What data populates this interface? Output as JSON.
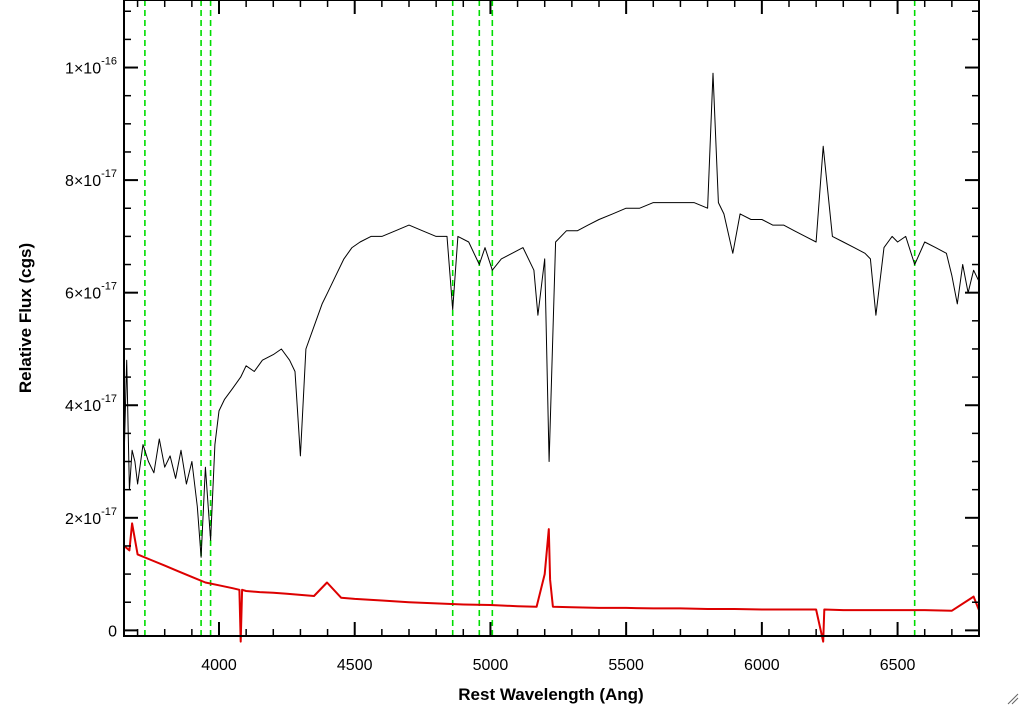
{
  "chart_data": {
    "type": "line",
    "xlabel": "Rest Wavelength (Ang)",
    "ylabel": "Relative Flux (cgs)",
    "xlim": [
      3650,
      6800
    ],
    "ylim": [
      -1e-18,
      1.12e-16
    ],
    "x_ticks": [
      {
        "value": 4000,
        "label": "4000"
      },
      {
        "value": 4500,
        "label": "4500"
      },
      {
        "value": 5000,
        "label": "5000"
      },
      {
        "value": 5500,
        "label": "5500"
      },
      {
        "value": 6000,
        "label": "6000"
      },
      {
        "value": 6500,
        "label": "6500"
      }
    ],
    "y_ticks": [
      {
        "value": 0,
        "mant": "0",
        "exp": ""
      },
      {
        "value": 2e-17,
        "mant": "2×10",
        "exp": "-17"
      },
      {
        "value": 4e-17,
        "mant": "4×10",
        "exp": "-17"
      },
      {
        "value": 6e-17,
        "mant": "6×10",
        "exp": "-17"
      },
      {
        "value": 8e-17,
        "mant": "8×10",
        "exp": "-17"
      },
      {
        "value": 1e-16,
        "mant": "1×10",
        "exp": "-16"
      }
    ],
    "grid": false,
    "legend": "none",
    "vlines": {
      "color": "#00dd00",
      "style": "dashed",
      "x": [
        3727,
        3934,
        3969,
        4861,
        4959,
        5007,
        6563
      ]
    },
    "series": [
      {
        "color": "#000000",
        "x": [
          3650,
          3660,
          3670,
          3680,
          3690,
          3700,
          3720,
          3740,
          3760,
          3780,
          3800,
          3820,
          3840,
          3860,
          3880,
          3900,
          3920,
          3934,
          3950,
          3969,
          3985,
          4000,
          4020,
          4050,
          4080,
          4100,
          4130,
          4160,
          4200,
          4230,
          4260,
          4280,
          4300,
          4320,
          4350,
          4380,
          4400,
          4430,
          4460,
          4490,
          4520,
          4560,
          4600,
          4650,
          4700,
          4750,
          4800,
          4840,
          4861,
          4880,
          4920,
          4959,
          4980,
          5007,
          5040,
          5080,
          5120,
          5160,
          5175,
          5200,
          5216,
          5240,
          5280,
          5320,
          5360,
          5400,
          5450,
          5500,
          5550,
          5600,
          5650,
          5700,
          5750,
          5800,
          5820,
          5840,
          5860,
          5893,
          5920,
          5960,
          6000,
          6040,
          6080,
          6120,
          6160,
          6200,
          6226,
          6260,
          6300,
          6340,
          6380,
          6400,
          6420,
          6450,
          6480,
          6500,
          6530,
          6563,
          6600,
          6640,
          6680,
          6700,
          6720,
          6740,
          6760,
          6780,
          6800
        ],
        "y": [
          3e-17,
          4.8e-17,
          2.5e-17,
          3.2e-17,
          3e-17,
          2.6e-17,
          3.3e-17,
          3e-17,
          2.8e-17,
          3.4e-17,
          2.9e-17,
          3.1e-17,
          2.7e-17,
          3.2e-17,
          2.6e-17,
          3e-17,
          2.2e-17,
          1.3e-17,
          2.9e-17,
          1.6e-17,
          3.3e-17,
          3.9e-17,
          4.1e-17,
          4.3e-17,
          4.5e-17,
          4.7e-17,
          4.6e-17,
          4.8e-17,
          4.9e-17,
          5e-17,
          4.8e-17,
          4.6e-17,
          3.1e-17,
          5e-17,
          5.4e-17,
          5.8e-17,
          6e-17,
          6.3e-17,
          6.6e-17,
          6.8e-17,
          6.9e-17,
          7e-17,
          7e-17,
          7.1e-17,
          7.2e-17,
          7.1e-17,
          7e-17,
          7e-17,
          5.7e-17,
          7e-17,
          6.9e-17,
          6.5e-17,
          6.8e-17,
          6.4e-17,
          6.6e-17,
          6.7e-17,
          6.8e-17,
          6.4e-17,
          5.6e-17,
          6.6e-17,
          3e-17,
          6.9e-17,
          7.1e-17,
          7.1e-17,
          7.2e-17,
          7.3e-17,
          7.4e-17,
          7.5e-17,
          7.5e-17,
          7.6e-17,
          7.6e-17,
          7.6e-17,
          7.6e-17,
          7.5e-17,
          9.9e-17,
          7.6e-17,
          7.4e-17,
          6.7e-17,
          7.4e-17,
          7.3e-17,
          7.3e-17,
          7.2e-17,
          7.2e-17,
          7.1e-17,
          7e-17,
          6.9e-17,
          8.6e-17,
          7e-17,
          6.9e-17,
          6.8e-17,
          6.7e-17,
          6.6e-17,
          5.6e-17,
          6.8e-17,
          7e-17,
          6.9e-17,
          7e-17,
          6.5e-17,
          6.9e-17,
          6.8e-17,
          6.7e-17,
          6.3e-17,
          5.8e-17,
          6.5e-17,
          6e-17,
          6.4e-17,
          6.2e-17
        ]
      },
      {
        "color": "#dd0000",
        "x": [
          3650,
          3670,
          3680,
          3700,
          3750,
          3800,
          3850,
          3900,
          3950,
          4000,
          4050,
          4075,
          4080,
          4085,
          4100,
          4150,
          4200,
          4250,
          4300,
          4350,
          4398,
          4450,
          4500,
          4600,
          4700,
          4800,
          4900,
          5000,
          5050,
          5100,
          5170,
          5200,
          5215,
          5220,
          5230,
          5300,
          5400,
          5500,
          5600,
          5700,
          5800,
          5900,
          6000,
          6100,
          6200,
          6226,
          6230,
          6300,
          6400,
          6500,
          6600,
          6700,
          6780,
          6800
        ],
        "y": [
          1.5e-17,
          1.42e-17,
          1.9e-17,
          1.35e-17,
          1.25e-17,
          1.15e-17,
          1.05e-17,
          9.5e-18,
          8.5e-18,
          8e-18,
          7.5e-18,
          7.2e-18,
          -2e-18,
          7.2e-18,
          7e-18,
          6.8e-18,
          6.7e-18,
          6.5e-18,
          6.3e-18,
          6.1e-18,
          8.5e-18,
          5.8e-18,
          5.6e-18,
          5.3e-18,
          5e-18,
          4.8e-18,
          4.6e-18,
          4.5e-18,
          4.4e-18,
          4.3e-18,
          4.2e-18,
          1e-17,
          1.8e-17,
          9e-18,
          4.2e-18,
          4.1e-18,
          4e-18,
          4e-18,
          3.9e-18,
          3.9e-18,
          3.8e-18,
          3.8e-18,
          3.7e-18,
          3.7e-18,
          3.7e-18,
          -2e-18,
          3.7e-18,
          3.6e-18,
          3.6e-18,
          3.6e-18,
          3.6e-18,
          3.5e-18,
          6e-18,
          3.6e-18
        ]
      }
    ]
  }
}
